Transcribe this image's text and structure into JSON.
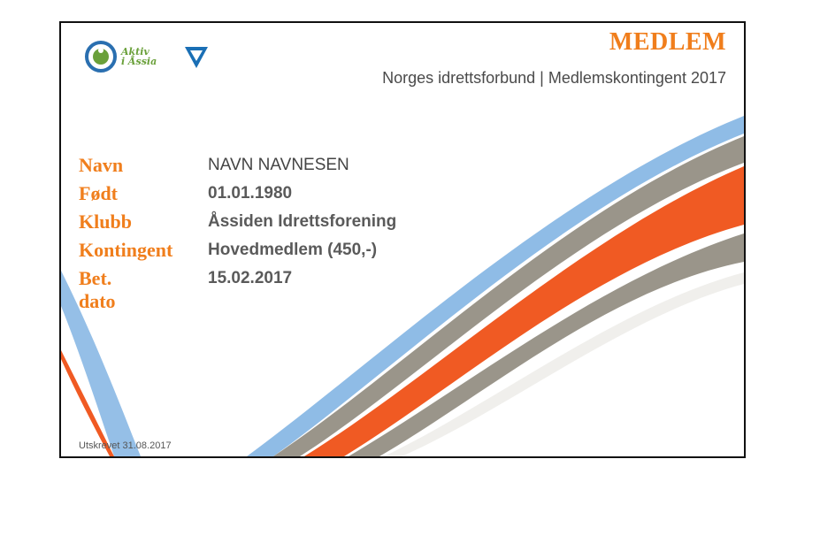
{
  "logo": {
    "text_line1": "Aktiv",
    "text_line2": "i Åssia",
    "icon": "club-logo-icon",
    "badge_icon": "shield-icon"
  },
  "header": {
    "title": "MEDLEM",
    "subtitle": "Norges idrettsforbund | Medlemskontingent 2017"
  },
  "fields": [
    {
      "label": "Navn",
      "value": "NAVN NAVNESEN"
    },
    {
      "label": "Født",
      "value": "01.01.1980"
    },
    {
      "label": "Klubb",
      "value": "Åssiden Idrettsforening"
    },
    {
      "label": "Kontingent",
      "value": "Hovedmedlem (450,-)"
    },
    {
      "label": "Bet. dato",
      "value": "15.02.2017"
    }
  ],
  "footer": {
    "printed": "Utskrevet 31.08.2017"
  },
  "colors": {
    "orange": "#f07e1c",
    "wave_orange": "#f05a23",
    "wave_blue": "#8fbce6",
    "wave_grey": "#9a958a"
  }
}
